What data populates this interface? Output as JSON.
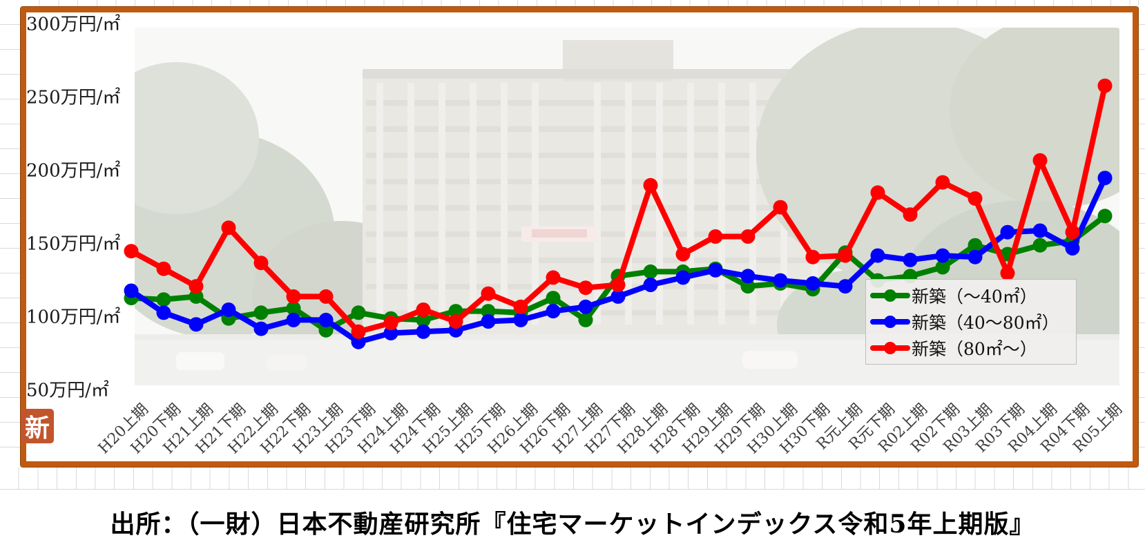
{
  "chart": {
    "y_axis_labels": [
      "300万円/㎡",
      "250万円/㎡",
      "200万円/㎡",
      "150万円/㎡",
      "100万円/㎡",
      "50万円/㎡"
    ],
    "frame_border_color": "#c05a11",
    "x_label_color": "#3f3f3f"
  },
  "chart_data": {
    "type": "line",
    "title": "",
    "ylabel": "万円/㎡",
    "ylim": [
      50,
      300
    ],
    "y_ticks": [
      300,
      250,
      200,
      150,
      100,
      50
    ],
    "grid": false,
    "legend_position": "inside-bottom-right",
    "categories": [
      "H20上期",
      "H20下期",
      "H21上期",
      "H21下期",
      "H22上期",
      "H22下期",
      "H23上期",
      "H23下期",
      "H24上期",
      "H24下期",
      "H25上期",
      "H25下期",
      "H26上期",
      "H26下期",
      "H27上期",
      "H27下期",
      "H28上期",
      "H28下期",
      "H29上期",
      "H29下期",
      "H30上期",
      "H30下期",
      "R元上期",
      "R元下期",
      "R02上期",
      "R02下期",
      "R03上期",
      "R03下期",
      "R04上期",
      "R04下期",
      "R05上期"
    ],
    "series": [
      {
        "name": "新築（～40㎡）",
        "color": "#008000",
        "values": [
          112,
          111,
          113,
          98,
          102,
          105,
          90,
          102,
          98,
          97,
          103,
          103,
          102,
          112,
          97,
          127,
          130,
          130,
          132,
          120,
          122,
          118,
          143,
          124,
          127,
          133,
          148,
          142,
          148,
          151,
          168
        ]
      },
      {
        "name": "新築（40～80㎡）",
        "color": "#0000ff",
        "values": [
          117,
          102,
          94,
          104,
          91,
          97,
          97,
          82,
          88,
          89,
          90,
          96,
          97,
          103,
          106,
          113,
          121,
          126,
          131,
          127,
          124,
          122,
          120,
          141,
          138,
          141,
          140,
          157,
          158,
          146,
          194
        ]
      },
      {
        "name": "新築（80㎡～）",
        "color": "#ff0000",
        "values": [
          144,
          132,
          120,
          160,
          136,
          113,
          113,
          89,
          95,
          104,
          96,
          115,
          106,
          126,
          119,
          121,
          189,
          142,
          154,
          154,
          174,
          140,
          141,
          184,
          169,
          191,
          180,
          129,
          206,
          157,
          257
        ]
      }
    ]
  },
  "stamp": {
    "glyph": "新",
    "color": "#c2552c"
  },
  "source": {
    "text": "出所：（一財）日本不動産研究所『住宅マーケットインデックス令和5年上期版』"
  }
}
